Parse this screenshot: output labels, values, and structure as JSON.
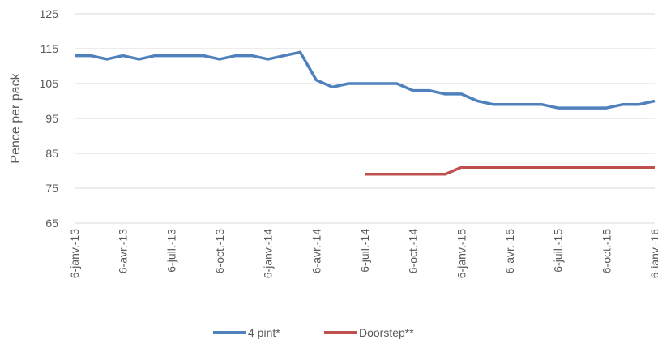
{
  "chart_data": {
    "type": "line",
    "y_label": "Pence per pack",
    "categories": [
      "6-janv.-13",
      null,
      null,
      "6-avr.-13",
      null,
      null,
      "6-juil.-13",
      null,
      null,
      "6-oct.-13",
      null,
      null,
      "6-janv.-14",
      null,
      null,
      "6-avr.-14",
      null,
      null,
      "6-juil.-14",
      null,
      null,
      "6-oct.-14",
      null,
      null,
      "6-janv.-15",
      null,
      null,
      "6-avr.-15",
      null,
      null,
      "6-juil.-15",
      null,
      null,
      "6-oct.-15",
      null,
      null,
      "6-janv.-16"
    ],
    "series": [
      {
        "name": "4 pint*",
        "color": "#4f81bd",
        "values": [
          113,
          113,
          112,
          113,
          112,
          113,
          113,
          113,
          113,
          112,
          113,
          113,
          112,
          113,
          114,
          106,
          104,
          105,
          105,
          105,
          105,
          103,
          103,
          102,
          102,
          100,
          99,
          99,
          99,
          99,
          98,
          98,
          98,
          98,
          99,
          99,
          100
        ]
      },
      {
        "name": "Doorstep**",
        "color": "#c0504d",
        "values": [
          null,
          null,
          null,
          null,
          null,
          null,
          null,
          null,
          null,
          null,
          null,
          null,
          null,
          null,
          null,
          null,
          null,
          null,
          79,
          79,
          79,
          79,
          79,
          79,
          81,
          81,
          81,
          81,
          81,
          81,
          81,
          81,
          81,
          81,
          81,
          81,
          81
        ]
      }
    ],
    "ylim": [
      65,
      125
    ],
    "yticks": [
      65,
      75,
      85,
      95,
      105,
      115,
      125
    ],
    "grid": true
  }
}
